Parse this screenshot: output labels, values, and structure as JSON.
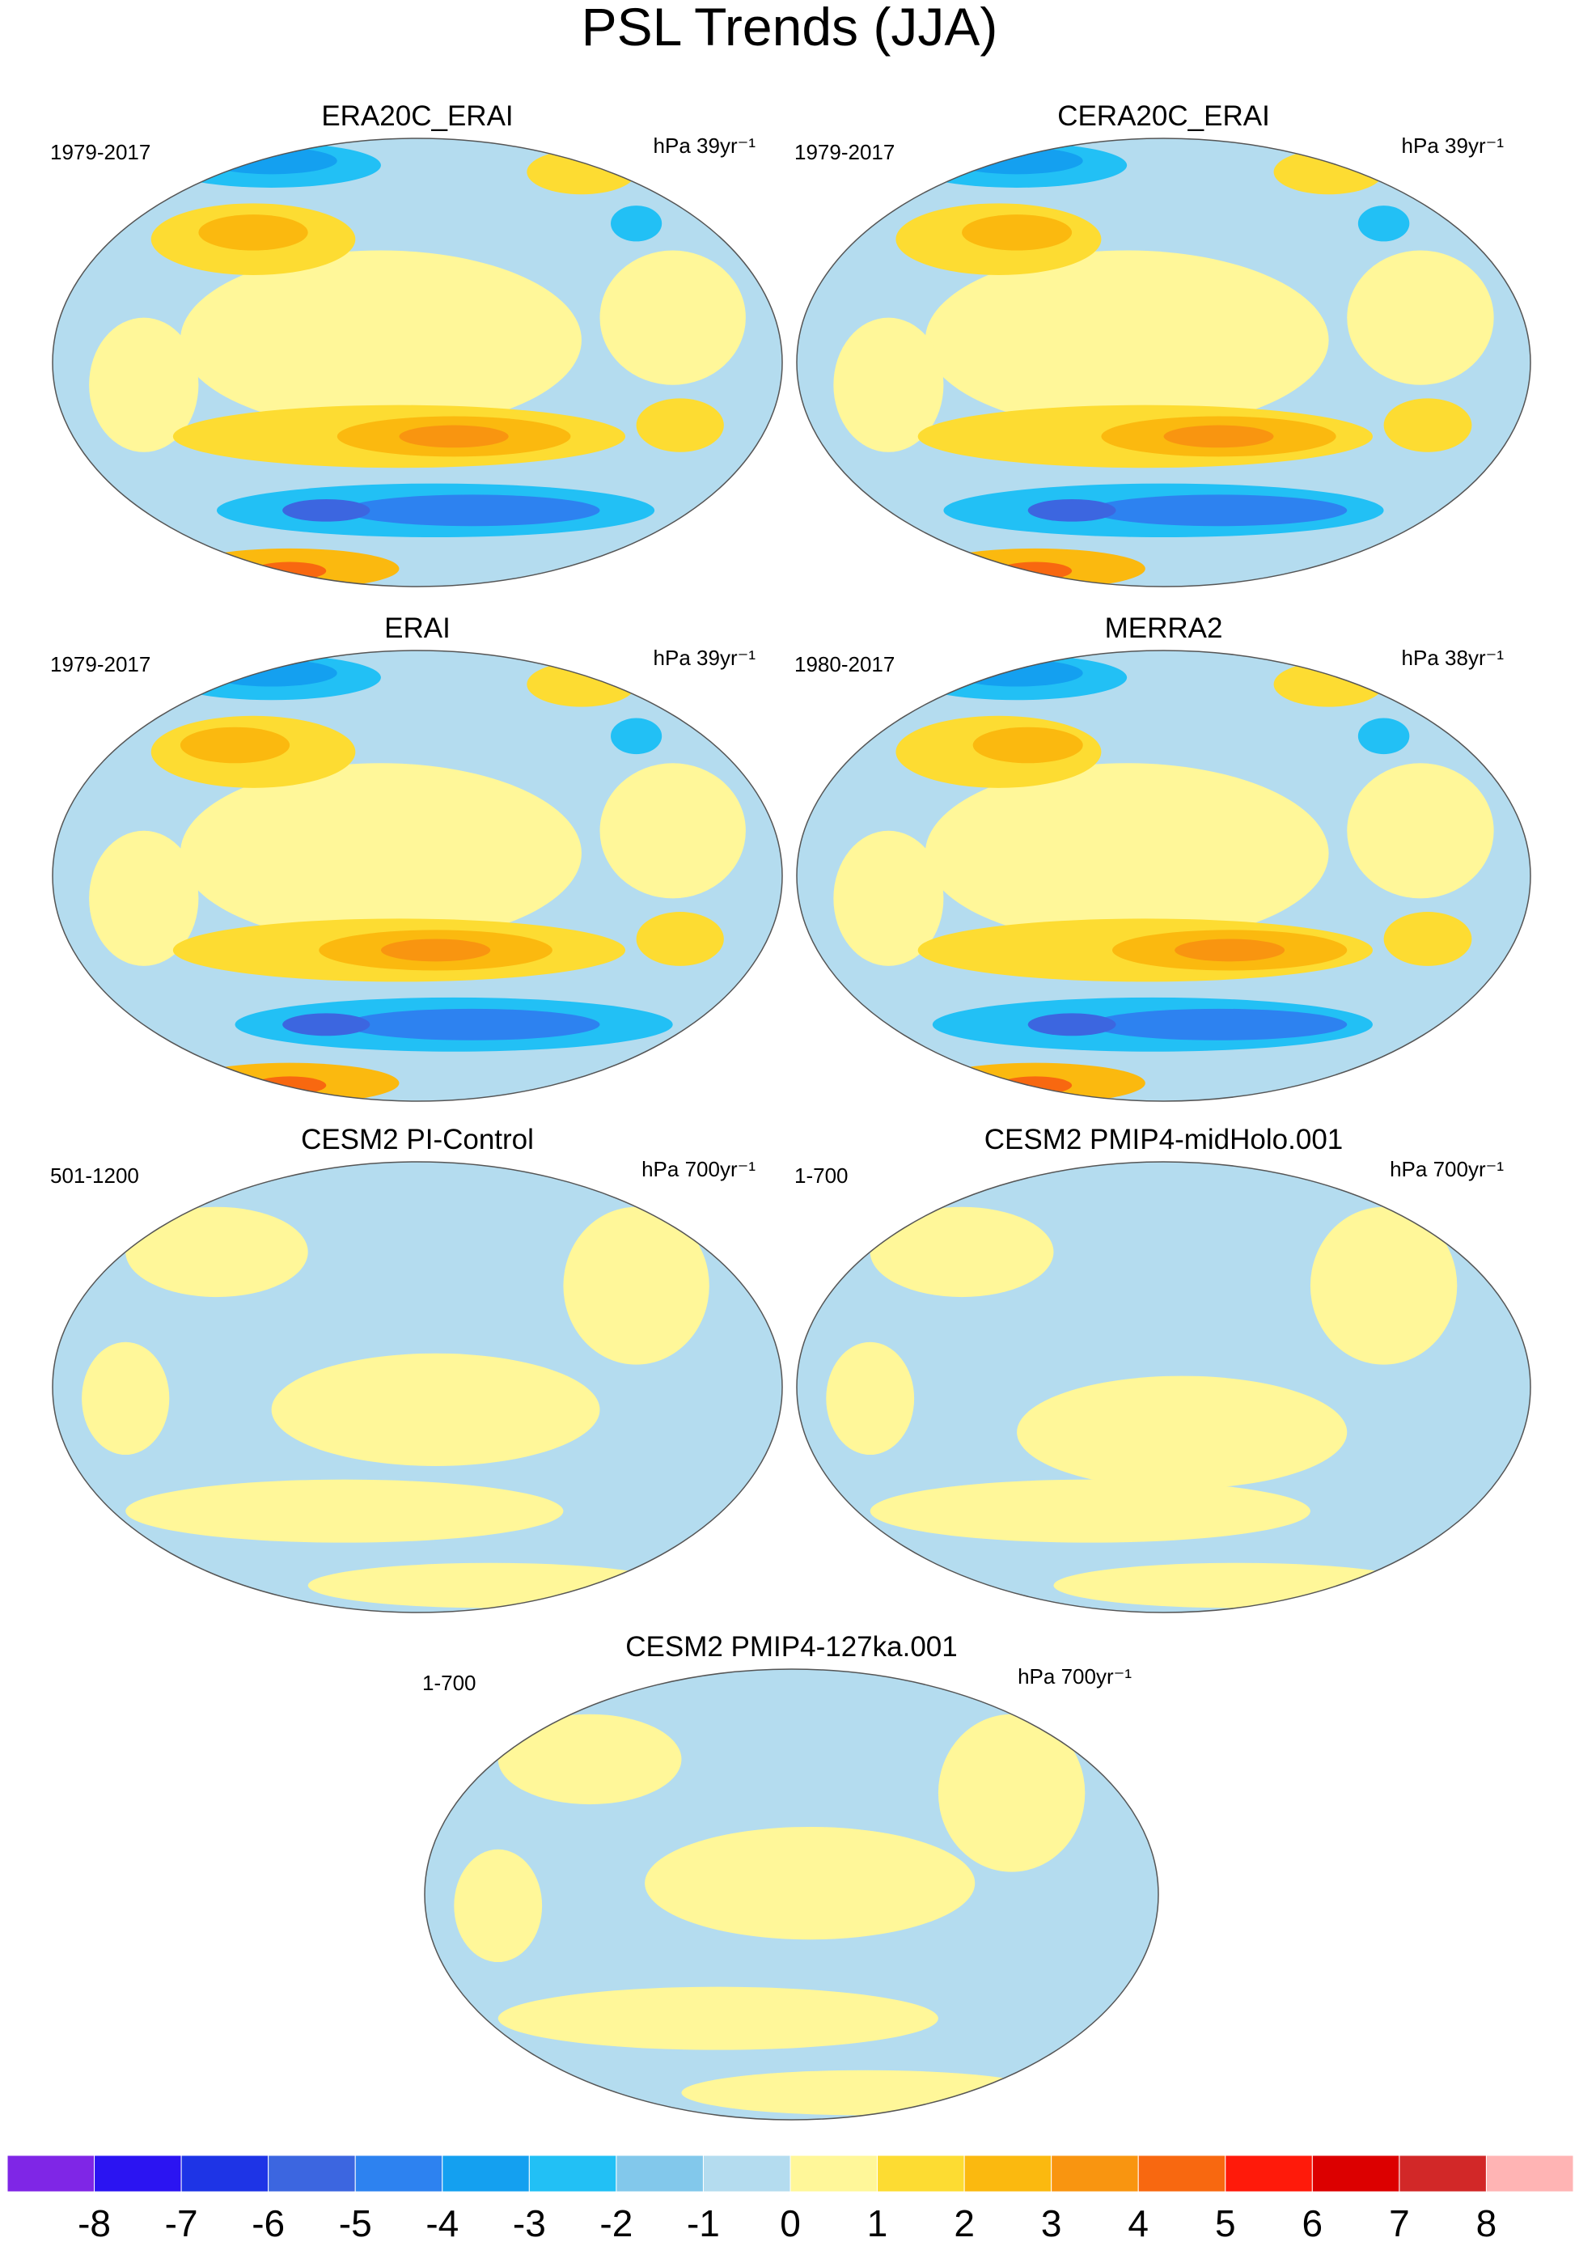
{
  "title": "PSL Trends (JJA)",
  "panels": [
    {
      "title": "ERA20C_ERAI",
      "period": "1979-2017",
      "units": "hPa 39yr⁻¹"
    },
    {
      "title": "CERA20C_ERAI",
      "period": "1979-2017",
      "units": "hPa 39yr⁻¹"
    },
    {
      "title": "ERAI",
      "period": "1979-2017",
      "units": "hPa 39yr⁻¹"
    },
    {
      "title": "MERRA2",
      "period": "1980-2017",
      "units": "hPa 38yr⁻¹"
    },
    {
      "title": "CESM2 PI-Control",
      "period": "501-1200",
      "units": "hPa 700yr⁻¹"
    },
    {
      "title": "CESM2 PMIP4-midHolo.001",
      "period": "1-700",
      "units": "hPa 700yr⁻¹"
    },
    {
      "title": "CESM2 PMIP4-127ka.001",
      "period": "1-700",
      "units": "hPa 700yr⁻¹"
    }
  ],
  "colorbar": {
    "levels": [
      -8,
      -7,
      -6,
      -5,
      -4,
      -3,
      -2,
      -1,
      0,
      1,
      2,
      3,
      4,
      5,
      6,
      7,
      8
    ],
    "colors": [
      "#7f26e6",
      "#2b14f2",
      "#1e34e6",
      "#3c66e0",
      "#2d82f0",
      "#14a0f0",
      "#22c0f5",
      "#82c8eb",
      "#b4dcef",
      "#fff799",
      "#fddc32",
      "#fbb90f",
      "#f99510",
      "#f86810",
      "#ff1a0a",
      "#dc0000",
      "#d22828",
      "#ffb4b4"
    ]
  }
}
